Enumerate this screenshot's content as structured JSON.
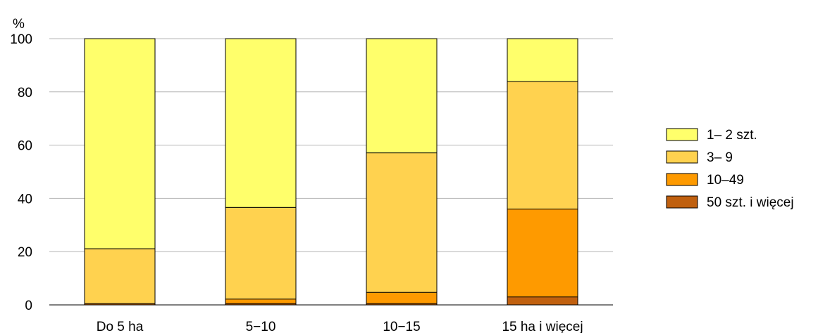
{
  "chart_data": {
    "type": "bar",
    "stacked": true,
    "ylabel": "%",
    "ylim": [
      0,
      100
    ],
    "yticks": [
      0,
      20,
      40,
      60,
      80,
      100
    ],
    "grid": true,
    "legend_position": "right",
    "categories": [
      "Do 5 ha",
      "5−10",
      "10−15",
      "15 ha i więcej"
    ],
    "series": [
      {
        "name": "50 szt. i więcej",
        "color": "#c0600f",
        "values": [
          0.5,
          0.5,
          0.5,
          3.0
        ]
      },
      {
        "name": "10–49",
        "color": "#fe9a00",
        "values": [
          0.0,
          1.7,
          4.2,
          33.0
        ]
      },
      {
        "name": "3–  9",
        "color": "#ffd24f",
        "values": [
          20.6,
          34.4,
          52.4,
          47.9
        ]
      },
      {
        "name": "1–  2 szt.",
        "color": "#ffff6b",
        "values": [
          78.9,
          63.4,
          42.9,
          16.1
        ]
      }
    ],
    "legend_order": [
      "1–  2 szt.",
      "3–  9",
      "10–49",
      "50 szt. i więcej"
    ]
  }
}
